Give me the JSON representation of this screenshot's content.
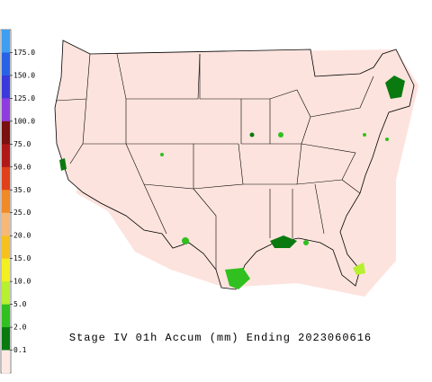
{
  "title": "Stage IV 01h Accum (mm) Ending 2023060616",
  "legend": {
    "labels": [
      "175.0",
      "150.0",
      "125.0",
      "100.0",
      "75.0",
      "50.0",
      "35.0",
      "25.0",
      "20.0",
      "15.0",
      "10.0",
      "5.0",
      "2.0",
      "0.1"
    ],
    "colors": [
      "#3f9ef2",
      "#2a62e6",
      "#3a3adc",
      "#8e3ce0",
      "#7a1010",
      "#b01818",
      "#e0401a",
      "#f08a28",
      "#f6b878",
      "#f6c020",
      "#f2f020",
      "#b6f030",
      "#30c020",
      "#0a7a10",
      "#fde8e4"
    ]
  }
}
